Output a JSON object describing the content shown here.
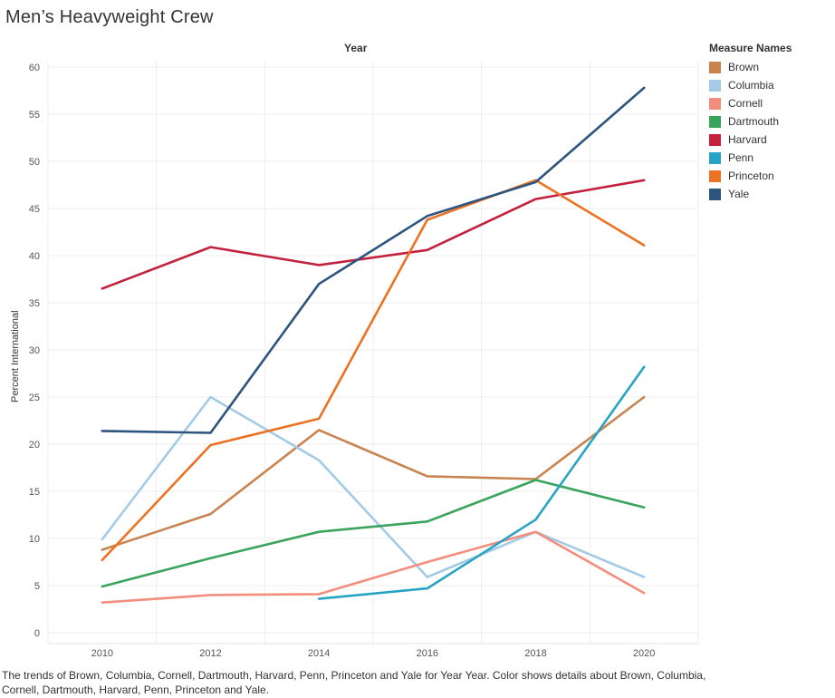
{
  "title": "Men’s Heavyweight Crew",
  "caption": "The trends of Brown, Columbia, Cornell, Dartmouth, Harvard, Penn, Princeton and Yale for Year Year.  Color shows details about Brown, Columbia, Cornell, Dartmouth, Harvard, Penn, Princeton and Yale.",
  "legend": {
    "title": "Measure Names"
  },
  "chart_data": {
    "type": "line",
    "title": "Year",
    "xlabel": "",
    "ylabel": "Percent International",
    "x": [
      2010,
      2012,
      2014,
      2016,
      2018,
      2020
    ],
    "x_ticks": [
      "2010",
      "2012",
      "2014",
      "2016",
      "2018",
      "2020"
    ],
    "y_ticks": [
      "0",
      "5",
      "10",
      "15",
      "20",
      "25",
      "30",
      "35",
      "40",
      "45",
      "50",
      "55",
      "60"
    ],
    "ylim": [
      0,
      60
    ],
    "grid": true,
    "legend_position": "right",
    "series": [
      {
        "name": "Brown",
        "color": "#c9834f",
        "values": [
          8.8,
          12.6,
          21.5,
          16.6,
          16.3,
          25.0
        ]
      },
      {
        "name": "Columbia",
        "color": "#a3cbe6",
        "values": [
          9.9,
          25.0,
          18.3,
          5.9,
          10.7,
          5.9
        ]
      },
      {
        "name": "Cornell",
        "color": "#f28e7d",
        "values": [
          3.2,
          4.0,
          4.1,
          7.5,
          10.7,
          4.2
        ]
      },
      {
        "name": "Dartmouth",
        "color": "#3aa45d",
        "values": [
          4.9,
          7.9,
          10.7,
          11.8,
          16.2,
          13.3
        ]
      },
      {
        "name": "Harvard",
        "color": "#c3213e",
        "values": [
          36.5,
          40.9,
          39.0,
          40.6,
          46.0,
          48.0
        ]
      },
      {
        "name": "Penn",
        "color": "#27a4c3",
        "values": [
          null,
          null,
          3.6,
          4.7,
          12.0,
          28.2
        ]
      },
      {
        "name": "Princeton",
        "color": "#ec7223",
        "values": [
          7.7,
          19.9,
          22.7,
          43.8,
          48.0,
          41.1
        ]
      },
      {
        "name": "Yale",
        "color": "#2e557e",
        "values": [
          21.4,
          21.2,
          37.0,
          44.2,
          47.8,
          57.8
        ]
      }
    ]
  }
}
